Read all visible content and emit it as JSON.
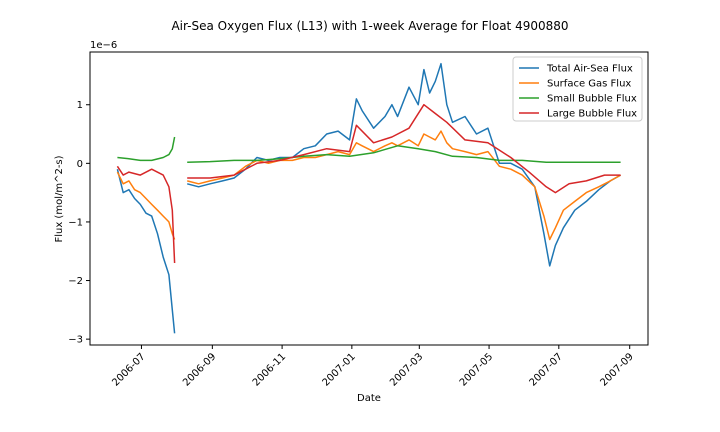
{
  "chart_data": {
    "type": "line",
    "title": "Air-Sea Oxygen Flux (L13) with 1-week Average for Float 4900880",
    "xlabel": "Date",
    "ylabel": "Flux (mol/m^2-s)",
    "y_offset_text": "1e−6",
    "x_range": [
      "2006-05-17",
      "2007-09-17"
    ],
    "ylim": [
      -3.1,
      1.9
    ],
    "y_ticks": [
      1,
      0,
      -1,
      -2,
      -3
    ],
    "y_tick_labels": [
      "1",
      "0",
      "−1",
      "−2",
      "−3"
    ],
    "x_ticks": [
      "2006-07",
      "2006-09",
      "2006-11",
      "2007-01",
      "2007-03",
      "2007-05",
      "2007-07",
      "2007-09"
    ],
    "x_tick_labels": [
      "2006-07",
      "2006-09",
      "2006-11",
      "2007-01",
      "2007-03",
      "2007-05",
      "2007-07",
      "2007-09"
    ],
    "grid": false,
    "legend_position": "top-right",
    "series": [
      {
        "name": "Total Air-Sea Flux",
        "color": "#1f77b4",
        "x": [
          "2006-06-10",
          "2006-06-15",
          "2006-06-20",
          "2006-06-25",
          "2006-06-30",
          "2006-07-05",
          "2006-07-10",
          "2006-07-15",
          "2006-07-20",
          "2006-07-25",
          "2006-07-28",
          "2006-07-30",
          null,
          "2006-08-10",
          "2006-08-20",
          "2006-08-30",
          "2006-09-10",
          "2006-09-20",
          "2006-09-30",
          "2006-10-10",
          "2006-10-20",
          "2006-10-30",
          "2006-11-10",
          "2006-11-20",
          "2006-11-30",
          "2006-12-10",
          "2006-12-20",
          "2006-12-30",
          "2007-01-05",
          "2007-01-10",
          "2007-01-20",
          "2007-01-30",
          "2007-02-05",
          "2007-02-10",
          "2007-02-20",
          "2007-02-28",
          "2007-03-05",
          "2007-03-10",
          "2007-03-15",
          "2007-03-20",
          "2007-03-25",
          "2007-03-30",
          "2007-04-10",
          "2007-04-20",
          "2007-04-30",
          "2007-05-10",
          "2007-05-20",
          "2007-05-30",
          "2007-06-10",
          "2007-06-18",
          "2007-06-23",
          "2007-06-28",
          "2007-07-05",
          "2007-07-15",
          "2007-07-25",
          "2007-08-05",
          "2007-08-15",
          "2007-08-24"
        ],
        "y": [
          -0.1,
          -0.5,
          -0.45,
          -0.6,
          -0.7,
          -0.85,
          -0.9,
          -1.2,
          -1.6,
          -1.9,
          -2.5,
          -2.9,
          null,
          -0.35,
          -0.4,
          -0.35,
          -0.3,
          -0.25,
          -0.1,
          0.1,
          0.05,
          0.1,
          0.1,
          0.25,
          0.3,
          0.5,
          0.55,
          0.4,
          1.1,
          0.9,
          0.6,
          0.8,
          1.0,
          0.8,
          1.3,
          1.0,
          1.6,
          1.2,
          1.4,
          1.7,
          1.0,
          0.7,
          0.8,
          0.5,
          0.6,
          0.0,
          0.0,
          -0.1,
          -0.4,
          -1.2,
          -1.75,
          -1.4,
          -1.1,
          -0.8,
          -0.65,
          -0.45,
          -0.3,
          -0.2
        ]
      },
      {
        "name": "Surface Gas Flux",
        "color": "#ff7f0e",
        "x": [
          "2006-06-10",
          "2006-06-15",
          "2006-06-20",
          "2006-06-25",
          "2006-06-30",
          "2006-07-05",
          "2006-07-10",
          "2006-07-15",
          "2006-07-20",
          "2006-07-25",
          "2006-07-28",
          "2006-07-30",
          null,
          "2006-08-10",
          "2006-08-20",
          "2006-08-30",
          "2006-09-10",
          "2006-09-20",
          "2006-09-30",
          "2006-10-10",
          "2006-10-20",
          "2006-10-30",
          "2006-11-10",
          "2006-11-20",
          "2006-11-30",
          "2006-12-10",
          "2006-12-20",
          "2006-12-30",
          "2007-01-05",
          "2007-01-10",
          "2007-01-20",
          "2007-01-30",
          "2007-02-05",
          "2007-02-10",
          "2007-02-20",
          "2007-02-28",
          "2007-03-05",
          "2007-03-10",
          "2007-03-15",
          "2007-03-20",
          "2007-03-25",
          "2007-03-30",
          "2007-04-10",
          "2007-04-20",
          "2007-04-30",
          "2007-05-10",
          "2007-05-20",
          "2007-05-30",
          "2007-06-10",
          "2007-06-18",
          "2007-06-23",
          "2007-06-28",
          "2007-07-05",
          "2007-07-15",
          "2007-07-25",
          "2007-08-05",
          "2007-08-15",
          "2007-08-24"
        ],
        "y": [
          -0.15,
          -0.35,
          -0.3,
          -0.45,
          -0.5,
          -0.6,
          -0.7,
          -0.8,
          -0.9,
          -1.0,
          -1.2,
          -1.3,
          null,
          -0.3,
          -0.35,
          -0.3,
          -0.25,
          -0.2,
          -0.05,
          0.05,
          0.0,
          0.05,
          0.05,
          0.1,
          0.1,
          0.15,
          0.2,
          0.15,
          0.35,
          0.3,
          0.2,
          0.3,
          0.35,
          0.3,
          0.4,
          0.3,
          0.5,
          0.45,
          0.4,
          0.55,
          0.35,
          0.25,
          0.2,
          0.15,
          0.2,
          -0.05,
          -0.1,
          -0.2,
          -0.4,
          -0.9,
          -1.3,
          -1.1,
          -0.8,
          -0.65,
          -0.5,
          -0.4,
          -0.3,
          -0.2
        ]
      },
      {
        "name": "Small Bubble Flux",
        "color": "#2ca02c",
        "x": [
          "2006-06-10",
          "2006-06-20",
          "2006-06-30",
          "2006-07-10",
          "2006-07-20",
          "2006-07-25",
          "2006-07-28",
          "2006-07-30",
          null,
          "2006-08-10",
          "2006-08-30",
          "2006-09-20",
          "2006-10-10",
          "2006-10-30",
          "2006-11-20",
          "2006-12-10",
          "2006-12-30",
          "2007-01-20",
          "2007-02-10",
          "2007-02-28",
          "2007-03-15",
          "2007-03-30",
          "2007-04-20",
          "2007-05-10",
          "2007-05-30",
          "2007-06-20",
          "2007-07-10",
          "2007-08-01",
          "2007-08-24"
        ],
        "y": [
          0.1,
          0.08,
          0.05,
          0.05,
          0.1,
          0.15,
          0.25,
          0.45,
          null,
          0.02,
          0.03,
          0.05,
          0.05,
          0.08,
          0.12,
          0.15,
          0.12,
          0.18,
          0.3,
          0.25,
          0.2,
          0.12,
          0.1,
          0.05,
          0.05,
          0.02,
          0.02,
          0.02,
          0.02
        ]
      },
      {
        "name": "Large Bubble Flux",
        "color": "#d62728",
        "x": [
          "2006-06-10",
          "2006-06-15",
          "2006-06-20",
          "2006-06-30",
          "2006-07-10",
          "2006-07-20",
          "2006-07-25",
          "2006-07-28",
          "2006-07-30",
          null,
          "2006-08-10",
          "2006-08-30",
          "2006-09-20",
          "2006-10-10",
          "2006-10-30",
          "2006-11-20",
          "2006-12-10",
          "2006-12-30",
          "2007-01-05",
          "2007-01-20",
          "2007-02-05",
          "2007-02-20",
          "2007-03-05",
          "2007-03-15",
          "2007-03-25",
          "2007-04-10",
          "2007-04-30",
          "2007-05-20",
          "2007-06-05",
          "2007-06-20",
          "2007-06-28",
          "2007-07-10",
          "2007-07-25",
          "2007-08-10",
          "2007-08-24"
        ],
        "y": [
          -0.05,
          -0.2,
          -0.15,
          -0.2,
          -0.1,
          -0.2,
          -0.4,
          -0.8,
          -1.7,
          null,
          -0.25,
          -0.25,
          -0.2,
          0.0,
          0.05,
          0.15,
          0.25,
          0.2,
          0.65,
          0.35,
          0.45,
          0.6,
          1.0,
          0.85,
          0.7,
          0.4,
          0.35,
          0.1,
          -0.15,
          -0.4,
          -0.5,
          -0.35,
          -0.3,
          -0.2,
          -0.2
        ]
      }
    ]
  }
}
